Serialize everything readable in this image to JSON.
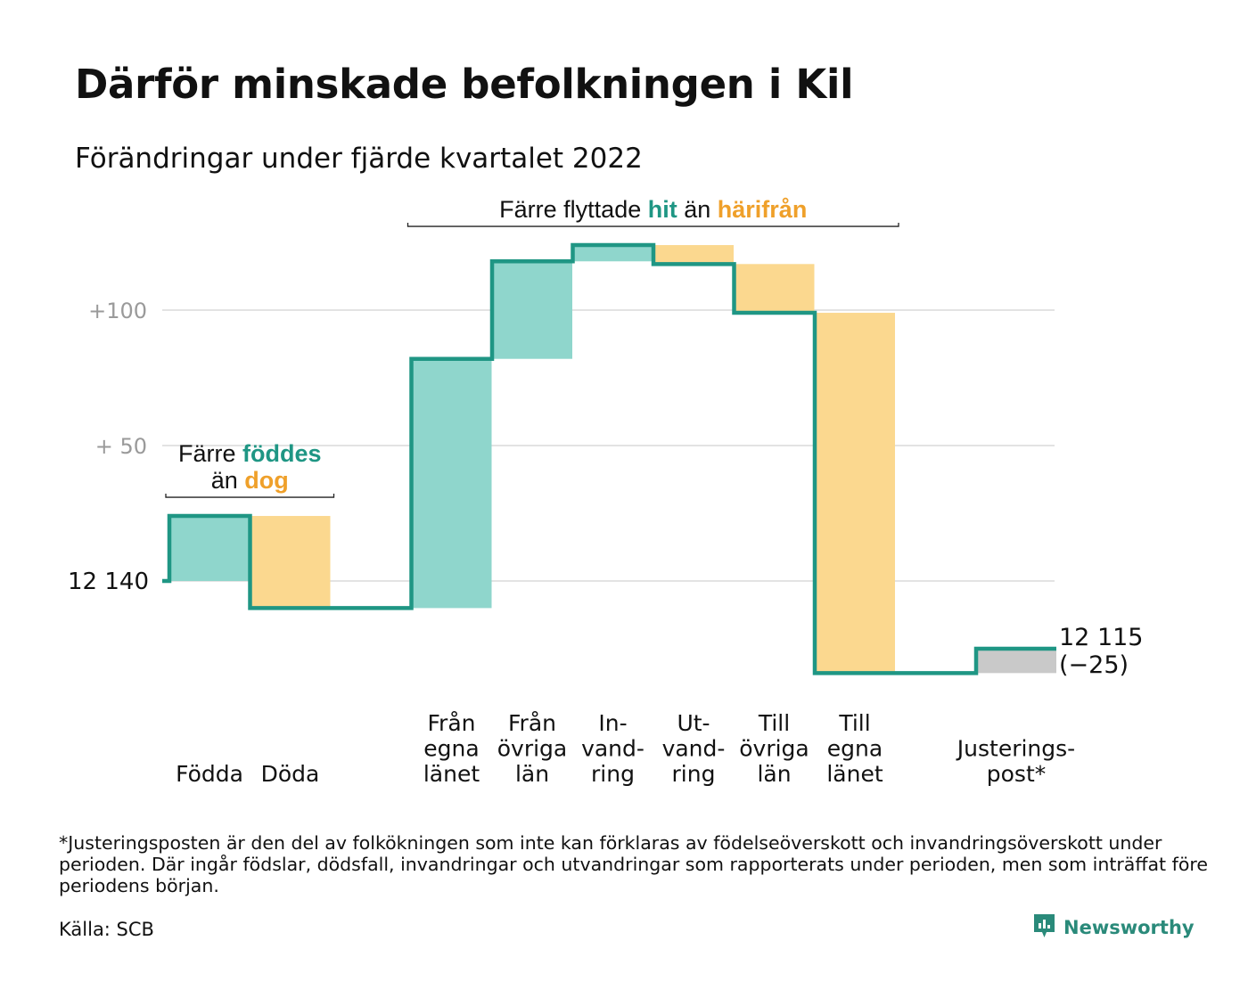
{
  "title": "Därför minskade befolkningen i Kil",
  "subtitle": "Förändringar under fjärde kvartalet 2022",
  "colors": {
    "increase": "#8fd6cc",
    "decrease": "#fbd88f",
    "adjustment": "#c9c9c9",
    "line": "#1f9684",
    "grid": "#e3e3e3",
    "teal_text": "#1f9684",
    "orange_text": "#efa02a",
    "tick_text": "#9a9a9a"
  },
  "chart_data": {
    "type": "waterfall",
    "start_value": 12140,
    "start_label": "12 140",
    "end_value": 12115,
    "end_label": "12 115",
    "end_change_label": "(−25)",
    "y_ticks": [
      {
        "value": 12190,
        "label": "+ 50"
      },
      {
        "value": 12240,
        "label": "+100"
      }
    ],
    "ylim": [
      12100,
      12270
    ],
    "steps": [
      {
        "label": [
          "Födda"
        ],
        "change": 24,
        "kind": "increase",
        "gap_before": 0
      },
      {
        "label": [
          "Döda"
        ],
        "change": -34,
        "kind": "decrease",
        "gap_before": 0
      },
      {
        "label": [
          "Från",
          "egna",
          "länet"
        ],
        "change": 92,
        "kind": "increase",
        "gap_before": 1
      },
      {
        "label": [
          "Från",
          "övriga",
          "län"
        ],
        "change": 36,
        "kind": "increase",
        "gap_before": 0
      },
      {
        "label": [
          "In-",
          "vand-",
          "ring"
        ],
        "change": 6,
        "kind": "increase",
        "gap_before": 0
      },
      {
        "label": [
          "Ut-",
          "vand-",
          "ring"
        ],
        "change": -7,
        "kind": "decrease",
        "gap_before": 0
      },
      {
        "label": [
          "Till",
          "övriga",
          "län"
        ],
        "change": -18,
        "kind": "decrease",
        "gap_before": 0
      },
      {
        "label": [
          "Till",
          "egna",
          "länet"
        ],
        "change": -133,
        "kind": "decrease",
        "gap_before": 0
      },
      {
        "label": [
          "Justerings-",
          "post*"
        ],
        "change": 9,
        "kind": "adjustment",
        "gap_before": 1
      }
    ],
    "annotations": [
      {
        "range": [
          0,
          1
        ],
        "lines": [
          [
            {
              "text": "Färre ",
              "style": "plain"
            },
            {
              "text": "föddes",
              "style": "teal"
            }
          ],
          [
            {
              "text": "än ",
              "style": "plain"
            },
            {
              "text": "dog",
              "style": "orange"
            }
          ]
        ]
      },
      {
        "range": [
          2,
          7
        ],
        "lines": [
          [
            {
              "text": "Färre flyttade ",
              "style": "plain"
            },
            {
              "text": "hit",
              "style": "teal"
            },
            {
              "text": " än ",
              "style": "plain"
            },
            {
              "text": "härifrån",
              "style": "orange"
            }
          ]
        ]
      }
    ]
  },
  "footnote": "*Justeringsposten är den del av folkökningen som inte kan förklaras av födelseöverskott och invandringsöverskott under perioden. Där ingår födslar, dödsfall, invandringar och utvandringar som rapporterats under perioden, men som inträffat före periodens början.",
  "source": "Källa: SCB",
  "brand": {
    "name": "Newsworthy",
    "icon": "newsworthy-logo-icon"
  }
}
